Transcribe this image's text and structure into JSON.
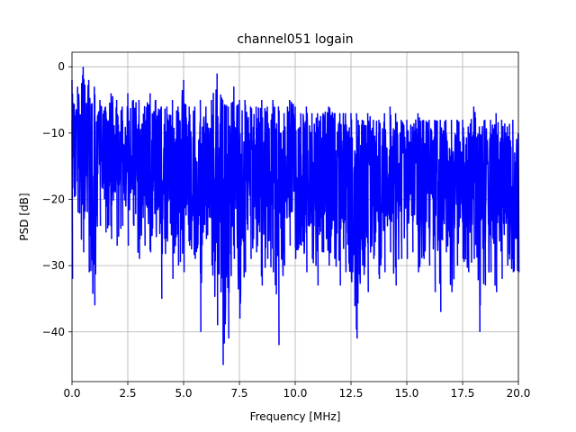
{
  "chart_data": {
    "type": "line",
    "title": "channel051 logain",
    "xlabel": "Frequency [MHz]",
    "ylabel": "PSD [dB]",
    "xlim": [
      0,
      20
    ],
    "ylim": [
      -47.5,
      2.2
    ],
    "xticks": [
      0,
      2.5,
      5,
      7.5,
      10,
      12.5,
      15,
      17.5,
      20
    ],
    "xtick_labels": [
      "0.0",
      "2.5",
      "5.0",
      "7.5",
      "10.0",
      "12.5",
      "15.0",
      "17.5",
      "20.0"
    ],
    "yticks": [
      0,
      -10,
      -20,
      -30,
      -40
    ],
    "ytick_labels": [
      "0",
      "−10",
      "−20",
      "−30",
      "−40"
    ],
    "grid": true,
    "series": [
      {
        "color": "#0000ff",
        "x": [
          0.0,
          0.25,
          0.5,
          0.75,
          1.0,
          1.25,
          1.5,
          1.75,
          2.0,
          2.25,
          2.5,
          2.75,
          3.0,
          3.25,
          3.5,
          3.75,
          4.0,
          4.25,
          4.5,
          4.75,
          5.0,
          5.25,
          5.5,
          5.75,
          6.0,
          6.25,
          6.5,
          6.75,
          7.0,
          7.25,
          7.5,
          7.75,
          8.0,
          8.25,
          8.5,
          8.75,
          9.0,
          9.25,
          9.5,
          9.75,
          10.0,
          10.25,
          10.5,
          10.75,
          11.0,
          11.25,
          11.5,
          11.75,
          12.0,
          12.25,
          12.5,
          12.75,
          13.0,
          13.25,
          13.5,
          13.75,
          14.0,
          14.25,
          14.5,
          14.75,
          15.0,
          15.25,
          15.5,
          15.75,
          16.0,
          16.25,
          16.5,
          16.75,
          17.0,
          17.25,
          17.5,
          17.75,
          18.0,
          18.25,
          18.5,
          18.75,
          19.0,
          19.25,
          19.5,
          19.75,
          20.0
        ],
        "upper": [
          -2,
          -3,
          0,
          -2,
          -3,
          -5,
          -6,
          -4,
          -5,
          -6,
          -4,
          -5,
          -5,
          -6,
          -4,
          -5,
          -6,
          -6,
          -5,
          -6,
          -2,
          -6,
          -6,
          -5,
          -6,
          -5,
          -1,
          -5,
          -6,
          -3,
          -5,
          -5,
          -6,
          -6,
          -5,
          -6,
          -5,
          -6,
          -7,
          -5,
          -6,
          -7,
          -6,
          -7,
          -7,
          -7,
          -6,
          -7,
          -7,
          -7,
          -7,
          -7,
          -8,
          -7,
          -8,
          -8,
          -7,
          -6,
          -7,
          -8,
          -8,
          -9,
          -7,
          -8,
          -8,
          -8,
          -8,
          -8,
          -8,
          -8,
          -8,
          -9,
          -6,
          -9,
          -8,
          -8,
          -7,
          -8,
          -9,
          -8,
          -10
        ],
        "lower": [
          -32,
          -22,
          -28,
          -31,
          -36,
          -24,
          -25,
          -26,
          -27,
          -24,
          -27,
          -24,
          -29,
          -27,
          -28,
          -25,
          -35,
          -26,
          -32,
          -30,
          -31,
          -27,
          -29,
          -40,
          -26,
          -30,
          -39,
          -45,
          -41,
          -29,
          -38,
          -31,
          -29,
          -28,
          -33,
          -29,
          -31,
          -42,
          -30,
          -27,
          -29,
          -27,
          -31,
          -29,
          -33,
          -28,
          -30,
          -29,
          -33,
          -31,
          -32,
          -41,
          -30,
          -34,
          -29,
          -32,
          -31,
          -28,
          -33,
          -29,
          -29,
          -28,
          -31,
          -29,
          -30,
          -34,
          -37,
          -28,
          -34,
          -30,
          -29,
          -31,
          -29,
          -40,
          -33,
          -31,
          -34,
          -32,
          -30,
          -31,
          -31
        ]
      }
    ]
  }
}
